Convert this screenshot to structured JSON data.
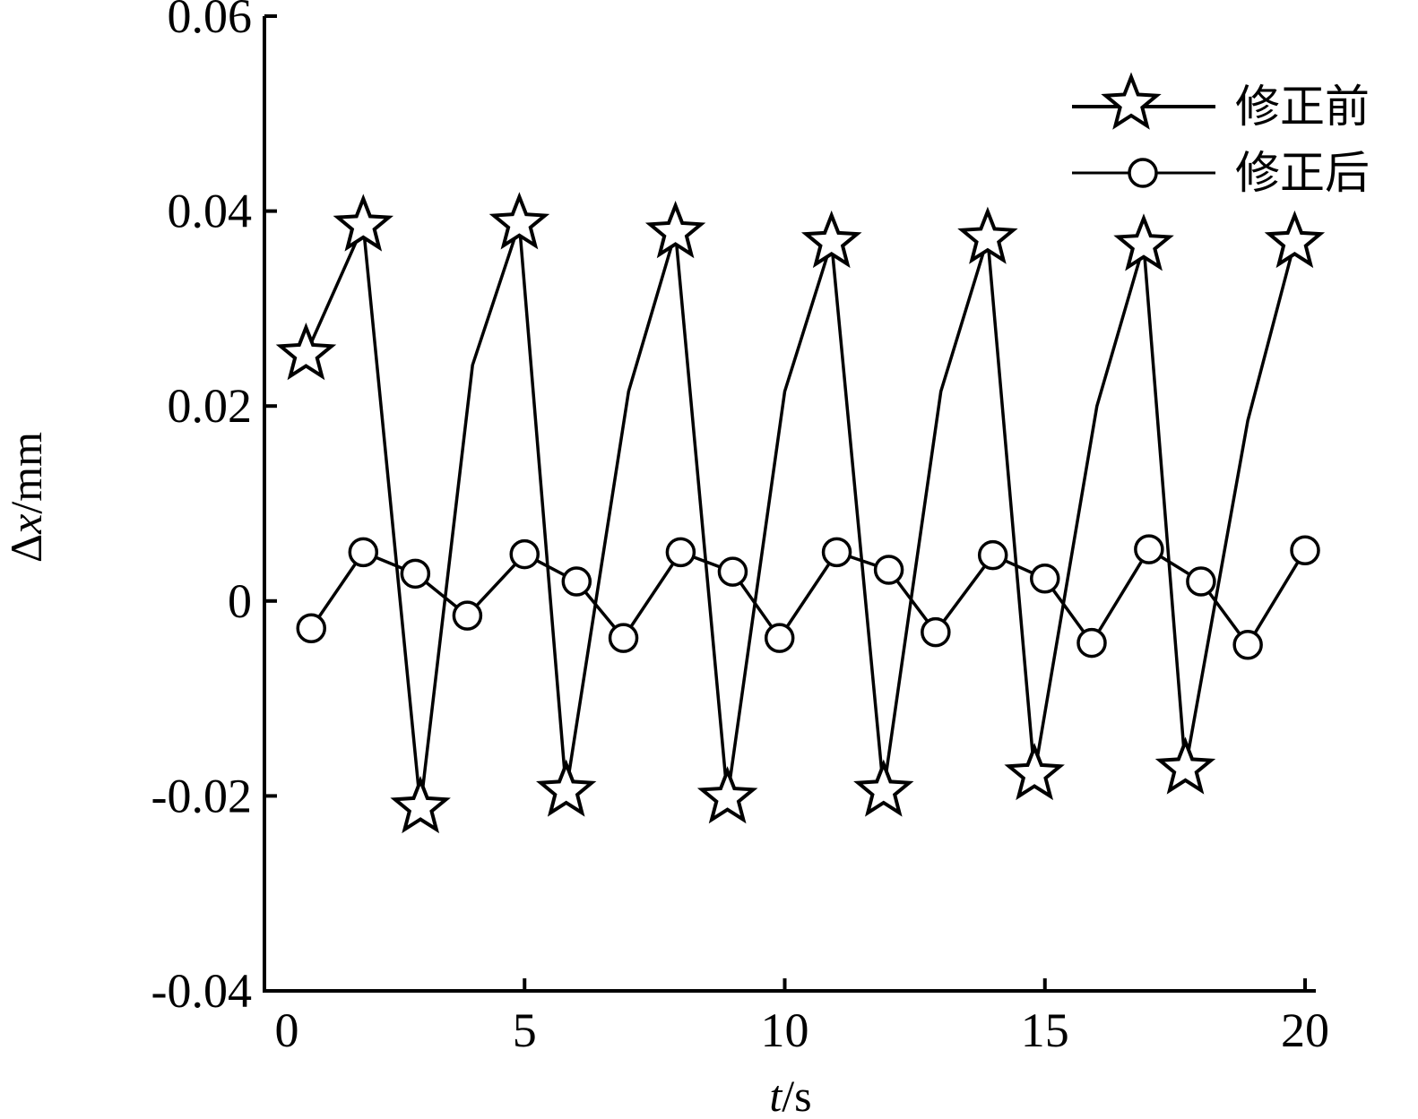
{
  "chart_data": {
    "type": "line",
    "xlabel_italic": "t",
    "xlabel_unit": "/s",
    "ylabel_prefix": "Δ",
    "ylabel_italic": "x",
    "ylabel_unit": "/mm",
    "xlim": [
      0,
      20
    ],
    "ylim": [
      -0.04,
      0.06
    ],
    "xticks": [
      0,
      5,
      10,
      15,
      20
    ],
    "xtick_labels": [
      "0",
      "5",
      "10",
      "15",
      "20"
    ],
    "yticks": [
      -0.04,
      -0.02,
      0,
      0.02,
      0.04,
      0.06
    ],
    "ytick_labels": [
      "-0.04",
      "-0.02",
      "0",
      "0.02",
      "0.04",
      "0.06"
    ],
    "grid": false,
    "legend_position": "top-right",
    "series": [
      {
        "name": "修正前",
        "marker": "star",
        "points": [
          {
            "x": 0.8,
            "y": 0.0253,
            "marker": true
          },
          {
            "x": 1.9,
            "y": 0.0385,
            "marker": true
          },
          {
            "x": 3.0,
            "y": -0.0212,
            "marker": true
          },
          {
            "x": 4.0,
            "y": 0.0242,
            "marker": false
          },
          {
            "x": 4.9,
            "y": 0.0387,
            "marker": true
          },
          {
            "x": 5.8,
            "y": -0.0195,
            "marker": true
          },
          {
            "x": 7.0,
            "y": 0.0215,
            "marker": false
          },
          {
            "x": 7.9,
            "y": 0.0378,
            "marker": true
          },
          {
            "x": 8.9,
            "y": -0.0202,
            "marker": true
          },
          {
            "x": 10.0,
            "y": 0.0215,
            "marker": false
          },
          {
            "x": 10.9,
            "y": 0.0368,
            "marker": true
          },
          {
            "x": 11.9,
            "y": -0.0195,
            "marker": true
          },
          {
            "x": 13.0,
            "y": 0.0215,
            "marker": false
          },
          {
            "x": 13.9,
            "y": 0.0372,
            "marker": true
          },
          {
            "x": 14.8,
            "y": -0.0178,
            "marker": true
          },
          {
            "x": 16.0,
            "y": 0.02,
            "marker": false
          },
          {
            "x": 16.9,
            "y": 0.0365,
            "marker": true
          },
          {
            "x": 17.7,
            "y": -0.0172,
            "marker": true
          },
          {
            "x": 18.9,
            "y": 0.0185,
            "marker": false
          },
          {
            "x": 19.8,
            "y": 0.0368,
            "marker": true
          }
        ]
      },
      {
        "name": "修正后",
        "marker": "circle",
        "points": [
          {
            "x": 0.9,
            "y": -0.0028,
            "marker": true
          },
          {
            "x": 1.9,
            "y": 0.005,
            "marker": true
          },
          {
            "x": 2.9,
            "y": 0.0028,
            "marker": true
          },
          {
            "x": 3.9,
            "y": -0.0015,
            "marker": true
          },
          {
            "x": 5.0,
            "y": 0.0048,
            "marker": true
          },
          {
            "x": 6.0,
            "y": 0.002,
            "marker": true
          },
          {
            "x": 6.9,
            "y": -0.0038,
            "marker": true
          },
          {
            "x": 8.0,
            "y": 0.005,
            "marker": true
          },
          {
            "x": 9.0,
            "y": 0.003,
            "marker": true
          },
          {
            "x": 9.9,
            "y": -0.0038,
            "marker": true
          },
          {
            "x": 11.0,
            "y": 0.005,
            "marker": true
          },
          {
            "x": 12.0,
            "y": 0.0032,
            "marker": true
          },
          {
            "x": 12.9,
            "y": -0.0032,
            "marker": true
          },
          {
            "x": 14.0,
            "y": 0.0047,
            "marker": true
          },
          {
            "x": 15.0,
            "y": 0.0023,
            "marker": true
          },
          {
            "x": 15.9,
            "y": -0.0043,
            "marker": true
          },
          {
            "x": 17.0,
            "y": 0.0053,
            "marker": true
          },
          {
            "x": 18.0,
            "y": 0.002,
            "marker": true
          },
          {
            "x": 18.9,
            "y": -0.0045,
            "marker": true
          },
          {
            "x": 20.0,
            "y": 0.0052,
            "marker": true
          }
        ]
      }
    ]
  }
}
